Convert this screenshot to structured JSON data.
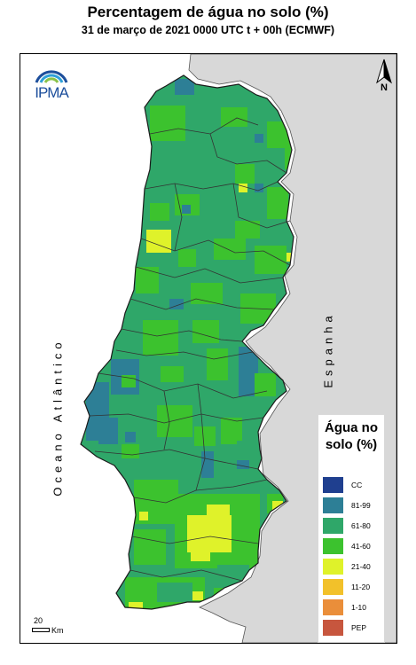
{
  "title": "Percentagem de água no solo (%)",
  "subtitle": "31 de março de 2021 0000 UTC t + 00h (ECMWF)",
  "map": {
    "sea_label": "Oceano Atlântico",
    "land_label": "Espanha",
    "logo_text": "IPMA",
    "north_letter": "N",
    "scale_value": "20",
    "scale_unit": "Km"
  },
  "legend": {
    "title": "Água no solo (%)",
    "items": [
      {
        "label": "CC",
        "color": "#1f3f8f"
      },
      {
        "label": "81-99",
        "color": "#2d7f96"
      },
      {
        "label": "61-80",
        "color": "#2fa769"
      },
      {
        "label": "41-60",
        "color": "#3cc22e"
      },
      {
        "label": "21-40",
        "color": "#dff22a"
      },
      {
        "label": "11-20",
        "color": "#f2c12a"
      },
      {
        "label": "1-10",
        "color": "#ea8e3a"
      },
      {
        "label": "PEP",
        "color": "#c7563e"
      }
    ]
  }
}
